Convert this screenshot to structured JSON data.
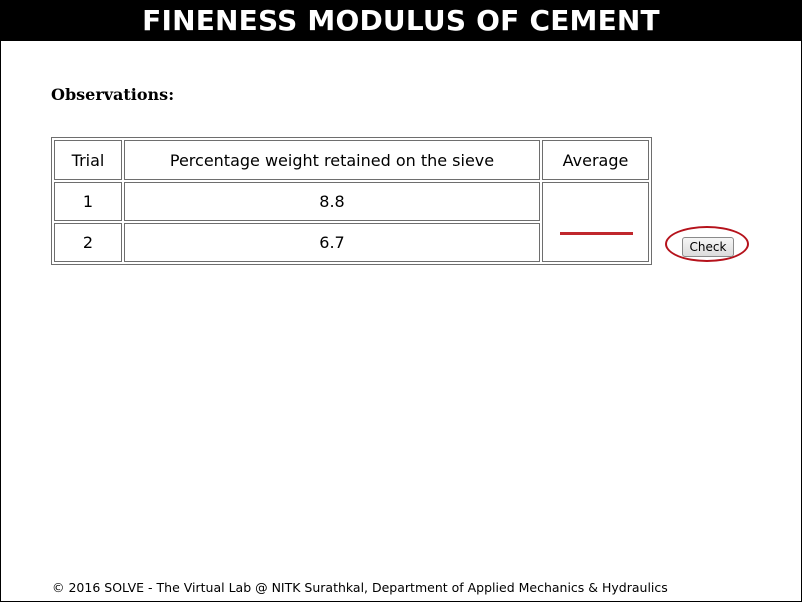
{
  "header": {
    "title": "FINENESS MODULUS OF CEMENT"
  },
  "observations": {
    "title": "Observations:",
    "table": {
      "headers": {
        "trial": "Trial",
        "percentage": "Percentage weight retained on the sieve",
        "average": "Average"
      },
      "rows": [
        {
          "trial": "1",
          "percentage": "8.8"
        },
        {
          "trial": "2",
          "percentage": "6.7"
        }
      ],
      "average_value": ""
    }
  },
  "check_button": {
    "label": "Check"
  },
  "footer": {
    "text": "© 2016 SOLVE - The Virtual Lab @ NITK Surathkal, Department of Applied Mechanics & Hydraulics"
  },
  "colors": {
    "header_bg": "#000000",
    "header_text": "#ffffff",
    "highlight": "#b5121b",
    "input_underline": "#c0282d"
  }
}
